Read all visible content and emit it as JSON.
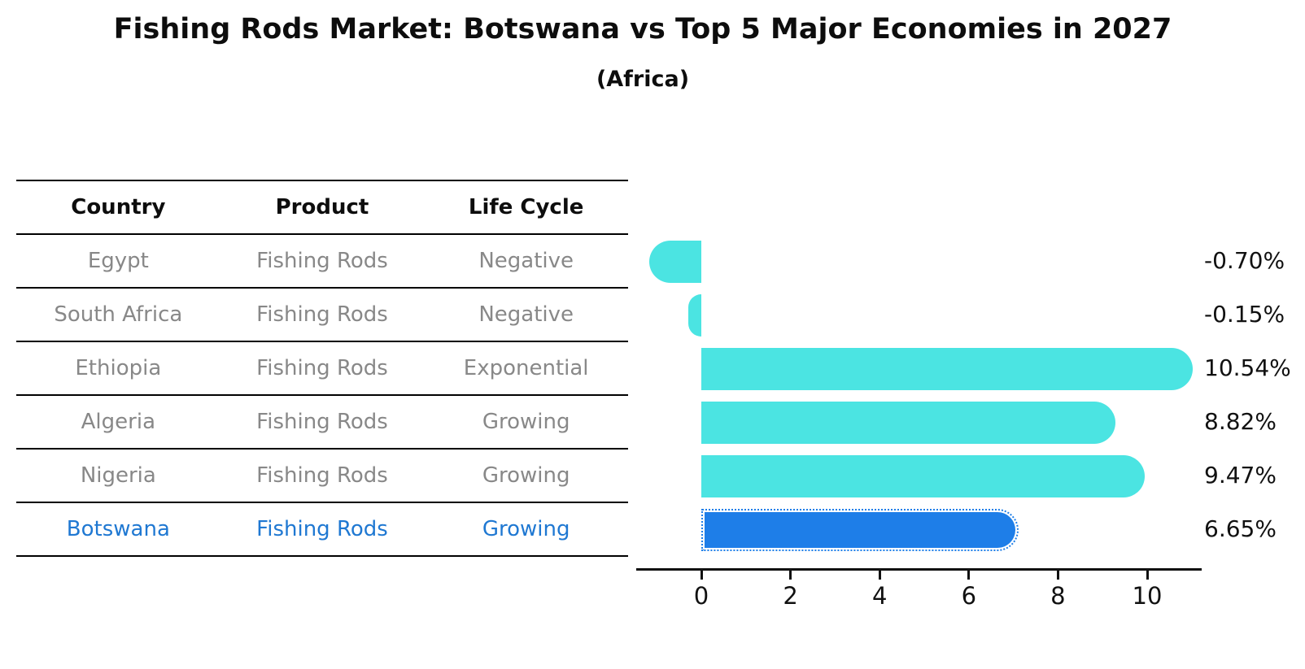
{
  "title": "Fishing Rods Market: Botswana vs Top 5 Major Economies in 2027",
  "subtitle": "(Africa)",
  "table": {
    "headers": [
      "Country",
      "Product",
      "Life Cycle"
    ],
    "rows": [
      {
        "country": "Egypt",
        "product": "Fishing Rods",
        "life_cycle": "Negative",
        "highlighted": false
      },
      {
        "country": "South Africa",
        "product": "Fishing Rods",
        "life_cycle": "Negative",
        "highlighted": false
      },
      {
        "country": "Ethiopia",
        "product": "Fishing Rods",
        "life_cycle": "Exponential",
        "highlighted": false
      },
      {
        "country": "Algeria",
        "product": "Fishing Rods",
        "life_cycle": "Growing",
        "highlighted": false
      },
      {
        "country": "Nigeria",
        "product": "Fishing Rods",
        "life_cycle": "Growing",
        "highlighted": true
      }
    ],
    "highlight_row": {
      "country": "Botswana",
      "product": "Fishing Rods",
      "life_cycle": "Growing"
    }
  },
  "chart_data": {
    "type": "bar",
    "orientation": "horizontal",
    "title": "Fishing Rods Market: Botswana vs Top 5 Major Economies in 2027",
    "subtitle": "(Africa)",
    "categories": [
      "Egypt",
      "South Africa",
      "Ethiopia",
      "Algeria",
      "Nigeria",
      "Botswana"
    ],
    "values": [
      -0.7,
      -0.15,
      10.54,
      8.82,
      9.47,
      6.65
    ],
    "value_labels": [
      "-0.70%",
      "-0.15%",
      "10.54%",
      "8.82%",
      "9.47%",
      "6.65%"
    ],
    "x_ticks": [
      0,
      2,
      4,
      6,
      8,
      10
    ],
    "xlim": [
      -1.45,
      11.2
    ],
    "grid": false,
    "legend": "none",
    "highlight_index": 5
  },
  "colors": {
    "bar": "#4be4e2",
    "highlight_bar": "#1e7ee8",
    "highlight_text": "#1f78d2",
    "table_text": "#888888",
    "header_text": "#0d0d0d",
    "axis": "#111111"
  }
}
